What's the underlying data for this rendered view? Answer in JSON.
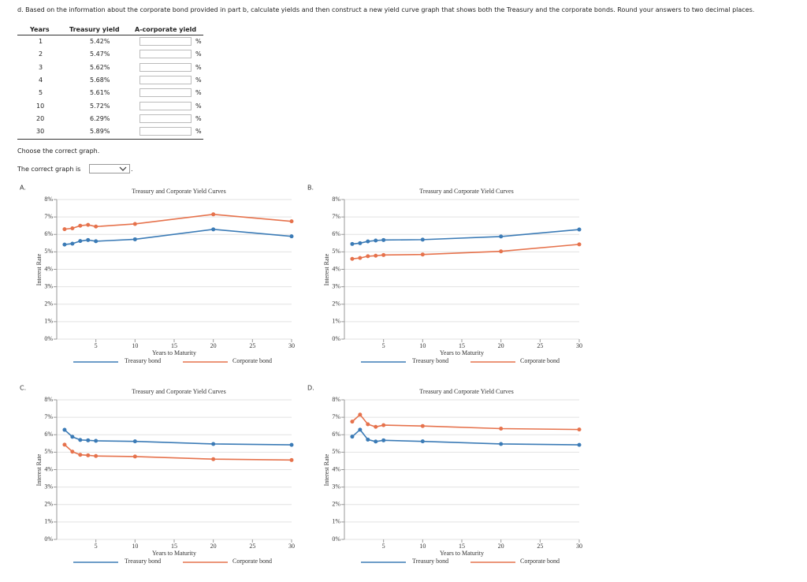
{
  "question": "d. Based on the information about the corporate bond provided in part b, calculate yields and then construct a new yield curve graph that shows both the Treasury and the corporate bonds. Round your answers to two decimal places.",
  "table": {
    "headers": [
      "Years",
      "Treasury yield",
      "A-corporate yield"
    ],
    "rows": [
      [
        "1",
        "5.42%"
      ],
      [
        "2",
        "5.47%"
      ],
      [
        "3",
        "5.62%"
      ],
      [
        "4",
        "5.68%"
      ],
      [
        "5",
        "5.61%"
      ],
      [
        "10",
        "5.72%"
      ],
      [
        "20",
        "6.29%"
      ],
      [
        "30",
        "5.89%"
      ]
    ],
    "input_unit": "%"
  },
  "choose": "Choose the correct graph.",
  "answer_prompt": "The correct graph is",
  "answer_end": ".",
  "option_labels": [
    "A.",
    "B.",
    "C.",
    "D."
  ],
  "chart_data": [
    {
      "type": "line",
      "title": "Treasury and Corporate Yield Curves",
      "xlabel": "Years to Maturity",
      "ylabel": "Interest Rate",
      "x": [
        1,
        2,
        3,
        4,
        5,
        10,
        20,
        30
      ],
      "series": [
        {
          "name": "Treasury bond",
          "color": "#3b7bb6",
          "values": [
            5.42,
            5.47,
            5.62,
            5.68,
            5.61,
            5.72,
            6.29,
            5.89
          ]
        },
        {
          "name": "Corporate bond",
          "color": "#e6724c",
          "values": [
            6.3,
            6.35,
            6.5,
            6.55,
            6.45,
            6.6,
            7.15,
            6.75
          ]
        }
      ],
      "xlim": [
        0,
        30
      ],
      "xticks": [
        5,
        10,
        15,
        20,
        25,
        30
      ],
      "ylim": [
        0,
        8
      ],
      "yticks": [
        {
          "value": 0,
          "label": "0%"
        },
        {
          "value": 1,
          "label": "1%"
        },
        {
          "value": 2,
          "label": "2%"
        },
        {
          "value": 3,
          "label": "3%"
        },
        {
          "value": 4,
          "label": "4%"
        },
        {
          "value": 5,
          "label": "5%"
        },
        {
          "value": 6,
          "label": "6%"
        },
        {
          "value": 7,
          "label": "7%"
        },
        {
          "value": 8,
          "label": "8%"
        }
      ],
      "grid": true
    },
    {
      "type": "line",
      "title": "Treasury and Corporate Yield Curves",
      "xlabel": "Years to Maturity",
      "ylabel": "Interest Rate",
      "x": [
        1,
        2,
        3,
        4,
        5,
        10,
        20,
        30
      ],
      "series": [
        {
          "name": "Treasury bond",
          "color": "#3b7bb6",
          "values": [
            5.45,
            5.5,
            5.6,
            5.65,
            5.68,
            5.7,
            5.88,
            6.28
          ]
        },
        {
          "name": "Corporate bond",
          "color": "#e6724c",
          "values": [
            4.6,
            4.65,
            4.75,
            4.78,
            4.82,
            4.85,
            5.03,
            5.43
          ]
        }
      ],
      "xlim": [
        0,
        30
      ],
      "xticks": [
        5,
        10,
        15,
        20,
        25,
        30
      ],
      "ylim": [
        0,
        8
      ],
      "yticks": [
        {
          "value": 0,
          "label": "0%"
        },
        {
          "value": 1,
          "label": "1%"
        },
        {
          "value": 2,
          "label": "2%"
        },
        {
          "value": 3,
          "label": "3%"
        },
        {
          "value": 4,
          "label": "4%"
        },
        {
          "value": 5,
          "label": "5%"
        },
        {
          "value": 6,
          "label": "6%"
        },
        {
          "value": 7,
          "label": "7%"
        },
        {
          "value": 8,
          "label": "8%"
        }
      ],
      "grid": true
    },
    {
      "type": "line",
      "title": "Treasury and Corporate Yield Curves",
      "xlabel": "Years to Maturity",
      "ylabel": "Interest Rate",
      "x": [
        1,
        2,
        3,
        4,
        5,
        10,
        20,
        30
      ],
      "series": [
        {
          "name": "Treasury bond",
          "color": "#3b7bb6",
          "values": [
            6.28,
            5.88,
            5.7,
            5.68,
            5.65,
            5.62,
            5.47,
            5.42
          ]
        },
        {
          "name": "Corporate bond",
          "color": "#e6724c",
          "values": [
            5.43,
            5.03,
            4.85,
            4.82,
            4.78,
            4.75,
            4.6,
            4.55
          ]
        }
      ],
      "xlim": [
        0,
        30
      ],
      "xticks": [
        5,
        10,
        15,
        20,
        25,
        30
      ],
      "ylim": [
        0,
        8
      ],
      "yticks": [
        {
          "value": 0,
          "label": "0%"
        },
        {
          "value": 1,
          "label": "1%"
        },
        {
          "value": 2,
          "label": "2%"
        },
        {
          "value": 3,
          "label": "3%"
        },
        {
          "value": 4,
          "label": "4%"
        },
        {
          "value": 5,
          "label": "5%"
        },
        {
          "value": 6,
          "label": "6%"
        },
        {
          "value": 7,
          "label": "7%"
        },
        {
          "value": 8,
          "label": "8%"
        }
      ],
      "grid": true
    },
    {
      "type": "line",
      "title": "Treasury and Corporate Yield Curves",
      "xlabel": "Years to Maturity",
      "ylabel": "Interest Rate",
      "x": [
        1,
        2,
        3,
        4,
        5,
        10,
        20,
        30
      ],
      "series": [
        {
          "name": "Treasury bond",
          "color": "#3b7bb6",
          "values": [
            5.89,
            6.29,
            5.72,
            5.61,
            5.68,
            5.62,
            5.47,
            5.42
          ]
        },
        {
          "name": "Corporate bond",
          "color": "#e6724c",
          "values": [
            6.75,
            7.15,
            6.6,
            6.45,
            6.55,
            6.5,
            6.35,
            6.3
          ]
        }
      ],
      "xlim": [
        0,
        30
      ],
      "xticks": [
        5,
        10,
        15,
        20,
        25,
        30
      ],
      "ylim": [
        0,
        8
      ],
      "yticks": [
        {
          "value": 0,
          "label": "0%"
        },
        {
          "value": 1,
          "label": "1%"
        },
        {
          "value": 2,
          "label": "2%"
        },
        {
          "value": 3,
          "label": "3%"
        },
        {
          "value": 4,
          "label": "4%"
        },
        {
          "value": 5,
          "label": "5%"
        },
        {
          "value": 6,
          "label": "6%"
        },
        {
          "value": 7,
          "label": "7%"
        },
        {
          "value": 8,
          "label": "8%"
        }
      ],
      "grid": true
    }
  ]
}
